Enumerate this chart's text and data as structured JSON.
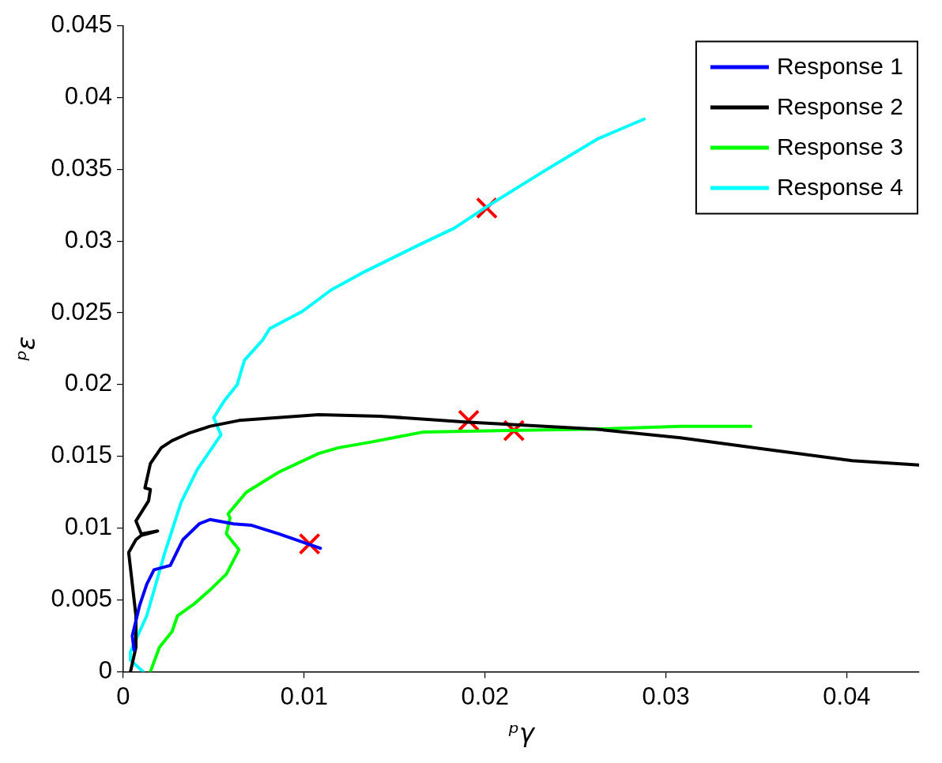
{
  "chart_data": {
    "type": "line",
    "xlabel": "ᵖγ",
    "ylabel": "ᵖε",
    "xlim": [
      0,
      0.044
    ],
    "xticks": [
      0,
      0.01,
      0.02,
      0.03,
      0.04
    ],
    "ylim": [
      0,
      0.045
    ],
    "yticks": [
      0,
      0.005,
      0.01,
      0.015,
      0.02,
      0.025,
      0.03,
      0.035,
      0.04,
      0.045
    ],
    "grid": false,
    "legend": "top right",
    "marker": "none",
    "line_style": "solid",
    "series": [
      {
        "name": "Response 1",
        "color": "#0000ff",
        "x": [
          0.0006,
          0.0005,
          0.0009,
          0.0013,
          0.0017,
          0.0026,
          0.0033,
          0.0042,
          0.0048,
          0.0061,
          0.0071,
          0.0086,
          0.0109
        ],
        "values": [
          0.0015,
          0.0025,
          0.0046,
          0.0061,
          0.0071,
          0.0074,
          0.0092,
          0.0103,
          0.0106,
          0.0103,
          0.0102,
          0.0096,
          0.0086
        ]
      },
      {
        "name": "Response 2",
        "color": "#000000",
        "x": [
          0.0004,
          0.0007,
          0.0007,
          0.0004,
          0.0003,
          0.0007,
          0.001,
          0.0019,
          0.001,
          0.0007,
          0.0014,
          0.0015,
          0.0012,
          0.0015,
          0.0021,
          0.0027,
          0.0036,
          0.0048,
          0.0064,
          0.0108,
          0.0142,
          0.0189,
          0.0261,
          0.0308,
          0.0355,
          0.0403,
          0.044
        ],
        "values": [
          0,
          0.0017,
          0.0039,
          0.0072,
          0.0083,
          0.0092,
          0.0095,
          0.0098,
          0.0096,
          0.0105,
          0.0119,
          0.0127,
          0.0128,
          0.0145,
          0.0156,
          0.0161,
          0.0166,
          0.0171,
          0.0175,
          0.0179,
          0.0178,
          0.0174,
          0.0169,
          0.0163,
          0.0155,
          0.0147,
          0.0144
        ]
      },
      {
        "name": "Response 3",
        "color": "#00ff00",
        "x": [
          0.0015,
          0.002,
          0.0027,
          0.003,
          0.0039,
          0.0048,
          0.0057,
          0.0064,
          0.0057,
          0.0059,
          0.0058,
          0.0068,
          0.0086,
          0.0108,
          0.0119,
          0.0137,
          0.0166,
          0.0213,
          0.0261,
          0.0308,
          0.0347
        ],
        "values": [
          0,
          0.0017,
          0.0028,
          0.0039,
          0.0047,
          0.0057,
          0.0068,
          0.0085,
          0.0096,
          0.0107,
          0.011,
          0.0125,
          0.0139,
          0.0152,
          0.0156,
          0.016,
          0.0167,
          0.0168,
          0.0169,
          0.0171,
          0.0171
        ]
      },
      {
        "name": "Response 4",
        "color": "#00ffff",
        "x": [
          0.0011,
          0.0004,
          0.0004,
          0.0013,
          0.0023,
          0.0032,
          0.0041,
          0.0054,
          0.005,
          0.0056,
          0.0063,
          0.0067,
          0.0077,
          0.0081,
          0.0099,
          0.0115,
          0.0134,
          0.0163,
          0.0183,
          0.0201,
          0.0233,
          0.0262,
          0.0288
        ],
        "values": [
          0,
          0.0008,
          0.0014,
          0.0039,
          0.0083,
          0.0118,
          0.0141,
          0.0165,
          0.0177,
          0.0189,
          0.02,
          0.0217,
          0.0231,
          0.0239,
          0.0251,
          0.0266,
          0.0279,
          0.0297,
          0.0309,
          0.0324,
          0.0349,
          0.0371,
          0.0385
        ]
      },
      {
        "type": "scatter",
        "color": "#ff0000",
        "marker": "cross",
        "x": [
          0.0103,
          0.0191,
          0.0216,
          0.0201
        ],
        "values": [
          0.0089,
          0.0175,
          0.0168,
          0.0323
        ]
      }
    ]
  }
}
